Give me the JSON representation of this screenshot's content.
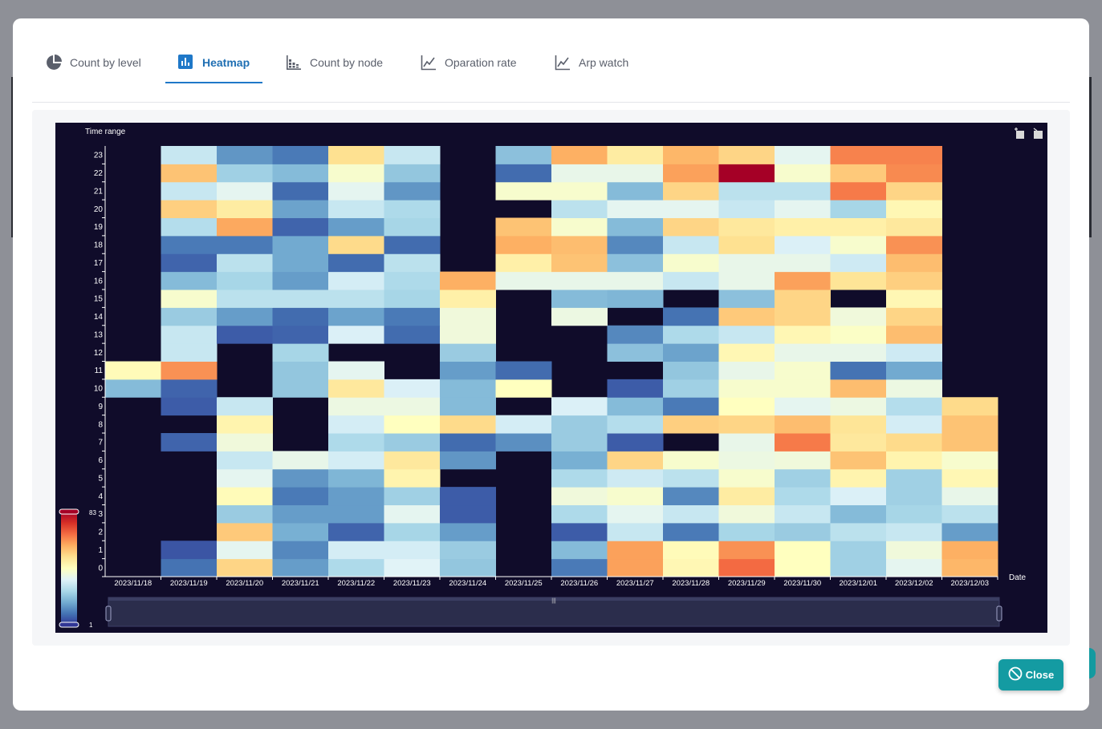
{
  "tabs": [
    {
      "label": "Count by level",
      "icon": "pie-chart-icon"
    },
    {
      "label": "Heatmap",
      "icon": "bar-chart-icon"
    },
    {
      "label": "Count by node",
      "icon": "stacked-bar-icon"
    },
    {
      "label": "Oparation rate",
      "icon": "line-chart-icon"
    },
    {
      "label": "Arp watch",
      "icon": "line-chart-icon"
    }
  ],
  "active_tab": "Heatmap",
  "close_label": "Close",
  "chart_data": {
    "type": "heatmap",
    "ylabel": "Time range",
    "xlabel": "Date",
    "x": [
      "2023/11/18",
      "2023/11/19",
      "2023/11/20",
      "2023/11/21",
      "2023/11/22",
      "2023/11/23",
      "2023/11/24",
      "2023/11/25",
      "2023/11/26",
      "2023/11/27",
      "2023/11/28",
      "2023/11/29",
      "2023/11/30",
      "2023/12/01",
      "2023/12/02",
      "2023/12/03"
    ],
    "y": [
      "0",
      "1",
      "2",
      "3",
      "4",
      "5",
      "6",
      "7",
      "8",
      "9",
      "10",
      "11",
      "12",
      "13",
      "14",
      "15",
      "16",
      "17",
      "18",
      "19",
      "20",
      "21",
      "22",
      "23"
    ],
    "visual_map": {
      "min": 1,
      "max": 83
    },
    "colors": {
      "background": "#100c2a",
      "scale": [
        "#313695",
        "#4575b4",
        "#74add1",
        "#abd9e9",
        "#e0f3f8",
        "#ffffbf",
        "#fee090",
        "#fdae61",
        "#f46d43",
        "#d73027",
        "#a50026"
      ]
    },
    "values": [
      [
        null,
        9,
        52,
        15,
        26,
        34,
        22,
        null,
        10,
        60,
        44,
        67,
        42,
        24,
        35,
        57
      ],
      [
        null,
        5,
        35,
        12,
        32,
        32,
        23,
        null,
        20,
        60,
        43,
        62,
        42,
        24,
        38,
        58
      ],
      [
        null,
        null,
        54,
        18,
        7,
        25,
        15,
        null,
        6,
        30,
        10,
        25,
        23,
        28,
        30,
        15
      ],
      [
        null,
        null,
        23,
        15,
        15,
        35,
        6,
        null,
        26,
        35,
        30,
        38,
        30,
        20,
        25,
        28
      ],
      [
        null,
        null,
        43,
        10,
        15,
        24,
        6,
        null,
        38,
        40,
        12,
        47,
        26,
        33,
        24,
        36
      ],
      [
        null,
        null,
        35,
        14,
        19,
        45,
        null,
        null,
        26,
        31,
        28,
        40,
        24,
        45,
        24,
        44
      ],
      [
        null,
        null,
        30,
        36,
        32,
        48,
        14,
        null,
        18,
        52,
        40,
        37,
        38,
        55,
        45,
        40
      ],
      [
        null,
        7,
        38,
        null,
        26,
        23,
        8,
        13,
        23,
        6,
        null,
        36,
        65,
        48,
        51,
        55
      ],
      [
        null,
        null,
        45,
        null,
        32,
        42,
        51,
        32,
        23,
        27,
        53,
        52,
        56,
        49,
        32,
        55
      ],
      [
        null,
        6,
        30,
        null,
        37,
        37,
        20,
        null,
        33,
        20,
        10,
        42,
        35,
        37,
        27,
        51
      ],
      [
        20,
        7,
        null,
        22,
        48,
        33,
        20,
        42,
        null,
        6,
        24,
        40,
        40,
        56,
        37,
        null
      ],
      [
        43,
        62,
        null,
        22,
        35,
        null,
        15,
        8,
        null,
        null,
        22,
        36,
        40,
        9,
        17,
        null
      ],
      [
        null,
        30,
        null,
        25,
        null,
        null,
        23,
        null,
        null,
        21,
        16,
        44,
        36,
        36,
        31,
        null
      ],
      [
        null,
        30,
        6,
        7,
        33,
        8,
        38,
        null,
        null,
        12,
        26,
        30,
        44,
        41,
        56,
        null
      ],
      [
        null,
        23,
        15,
        8,
        16,
        10,
        38,
        null,
        37,
        null,
        9,
        54,
        52,
        38,
        52,
        null
      ],
      [
        null,
        40,
        28,
        28,
        28,
        25,
        46,
        null,
        20,
        19,
        null,
        21,
        52,
        null,
        44,
        null
      ],
      [
        null,
        20,
        25,
        15,
        32,
        26,
        58,
        36,
        36,
        36,
        30,
        36,
        60,
        49,
        53,
        null
      ],
      [
        null,
        7,
        28,
        17,
        8,
        28,
        null,
        46,
        55,
        21,
        40,
        36,
        36,
        31,
        56,
        null
      ],
      [
        null,
        10,
        10,
        17,
        51,
        8,
        null,
        58,
        56,
        12,
        30,
        50,
        33,
        40,
        62,
        null
      ],
      [
        null,
        27,
        59,
        7,
        15,
        25,
        null,
        55,
        40,
        20,
        52,
        48,
        46,
        46,
        48,
        null
      ],
      [
        null,
        53,
        47,
        16,
        30,
        26,
        null,
        null,
        28,
        35,
        35,
        30,
        35,
        25,
        44,
        null
      ],
      [
        null,
        30,
        35,
        8,
        35,
        14,
        null,
        40,
        40,
        20,
        52,
        28,
        28,
        65,
        52,
        null
      ],
      [
        null,
        55,
        24,
        20,
        40,
        22,
        null,
        8,
        36,
        36,
        60,
        83,
        40,
        54,
        63,
        null
      ],
      [
        null,
        30,
        14,
        10,
        50,
        30,
        null,
        21,
        58,
        47,
        57,
        52,
        35,
        64,
        64,
        null
      ]
    ]
  }
}
